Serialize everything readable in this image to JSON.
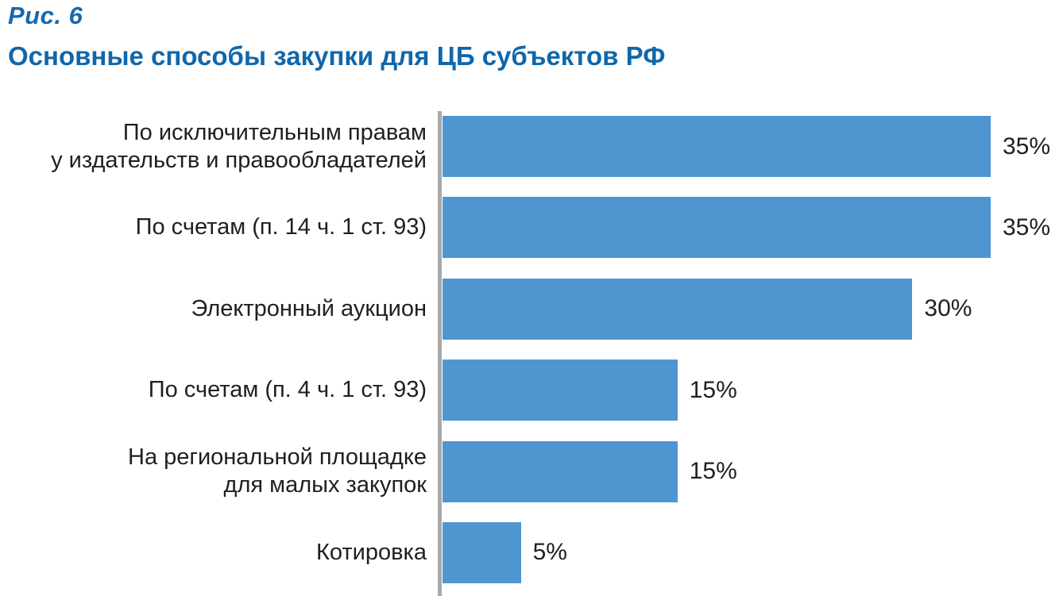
{
  "figure": {
    "number": "Рис. 6",
    "title": "Основные способы закупки для ЦБ субъектов РФ"
  },
  "chart_data": {
    "type": "bar",
    "orientation": "horizontal",
    "title": "Основные способы закупки для ЦБ субъектов РФ",
    "categories": [
      "По исключительным правам\nу издательств и правообладателей",
      "По счетам (п. 14 ч. 1 ст. 93)",
      "Электронный аукцион",
      "По счетам (п. 4 ч. 1 ст. 93)",
      "На региональной площадке\nдля малых закупок",
      "Котировка"
    ],
    "values": [
      35,
      35,
      30,
      15,
      15,
      5
    ],
    "value_labels": [
      "35%",
      "35%",
      "30%",
      "15%",
      "15%",
      "5%"
    ],
    "xlabel": "",
    "ylabel": "",
    "xlim": [
      0,
      35
    ],
    "grid": false,
    "legend": false,
    "data_labels_position": "right-of-bar",
    "colors": {
      "bar": "#4f96d1",
      "axis_line": "#a9a9a9",
      "figure_number": "#1569ae",
      "title": "#0f67ac",
      "text": "#1f1f1f"
    }
  }
}
